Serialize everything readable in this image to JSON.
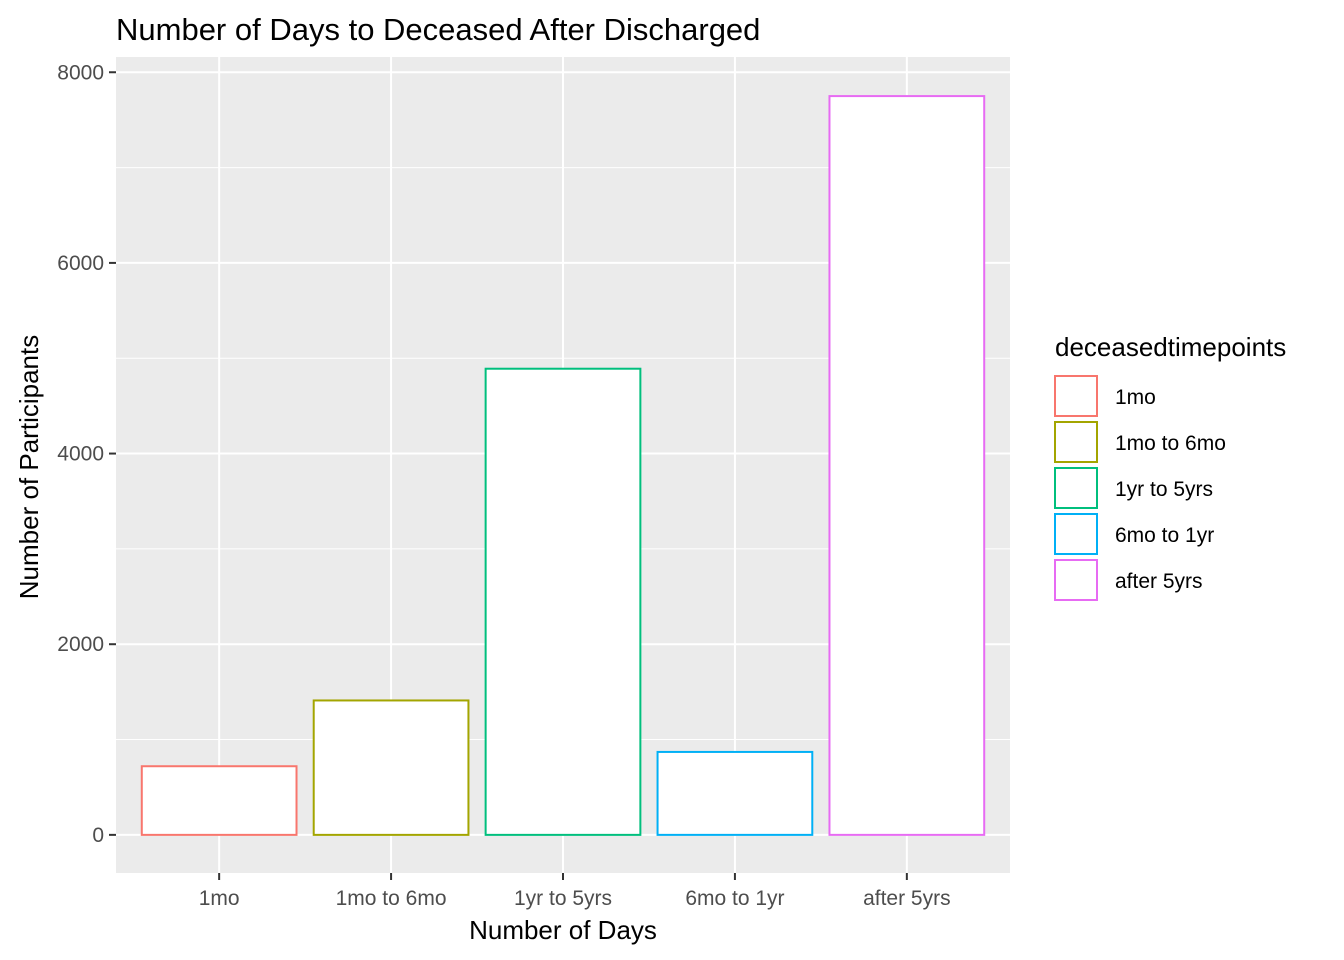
{
  "chart_data": {
    "type": "bar",
    "title": "Number of Days to Deceased After Discharged",
    "xlabel": "Number of Days",
    "ylabel": "Number of Participants",
    "categories": [
      "1mo",
      "1mo to 6mo",
      "1yr to 5yrs",
      "6mo to 1yr",
      "after 5yrs"
    ],
    "values": [
      720,
      1410,
      4890,
      870,
      7750
    ],
    "colors": [
      "#F8766D",
      "#A3A500",
      "#00BF7D",
      "#00B0F6",
      "#E76BF3"
    ],
    "ylim": [
      -400,
      8160
    ],
    "yticks": [
      0,
      2000,
      4000,
      6000,
      8000
    ],
    "ytick_labels": [
      "0",
      "2000",
      "4000",
      "6000",
      "8000"
    ],
    "grid": true,
    "legend": {
      "title": "deceasedtimepoints",
      "position": "right",
      "entries": [
        "1mo",
        "1mo to 6mo",
        "1yr to 5yrs",
        "6mo to 1yr",
        "after 5yrs"
      ]
    }
  },
  "style": {
    "panel_bg": "#EBEBEB",
    "grid_color": "#FFFFFF",
    "bar_fill": "#FFFFFF"
  }
}
